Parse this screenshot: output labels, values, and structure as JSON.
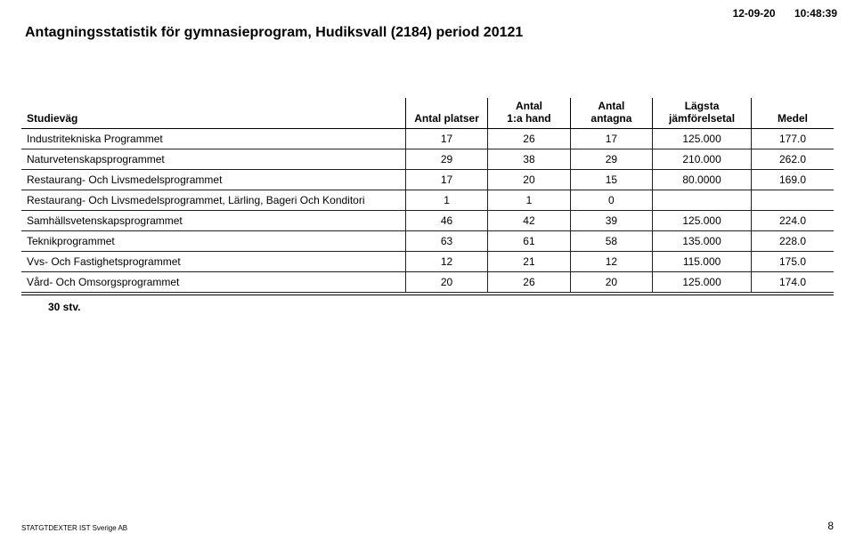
{
  "header": {
    "date": "12-09-20",
    "time": "10:48:39",
    "title": "Antagningsstatistik för gymnasieprogram,  Hudiksvall (2184) period 20121"
  },
  "table": {
    "columns": {
      "c1": "Studieväg",
      "c2": "Antal platser",
      "c3_line1": "Antal",
      "c3_line2": "1:a hand",
      "c4_line1": "Antal",
      "c4_line2": "antagna",
      "c5_line1": "Lägsta",
      "c5_line2": "jämförelsetal",
      "c6": "Medel"
    },
    "rows": [
      {
        "name": "Industritekniska Programmet",
        "platser": "17",
        "hand": "26",
        "antagna": "17",
        "lagsta": "125.000",
        "medel": "177.0"
      },
      {
        "name": "Naturvetenskapsprogrammet",
        "platser": "29",
        "hand": "38",
        "antagna": "29",
        "lagsta": "210.000",
        "medel": "262.0"
      },
      {
        "name": "Restaurang- Och Livsmedelsprogrammet",
        "platser": "17",
        "hand": "20",
        "antagna": "15",
        "lagsta": "80.0000",
        "medel": "169.0"
      },
      {
        "name": "Restaurang- Och Livsmedelsprogrammet, Lärling, Bageri Och Konditori",
        "platser": "1",
        "hand": "1",
        "antagna": "0",
        "lagsta": "",
        "medel": ""
      },
      {
        "name": "Samhällsvetenskapsprogrammet",
        "platser": "46",
        "hand": "42",
        "antagna": "39",
        "lagsta": "125.000",
        "medel": "224.0"
      },
      {
        "name": "Teknikprogrammet",
        "platser": "63",
        "hand": "61",
        "antagna": "58",
        "lagsta": "135.000",
        "medel": "228.0"
      },
      {
        "name": "Vvs- Och Fastighetsprogrammet",
        "platser": "12",
        "hand": "21",
        "antagna": "12",
        "lagsta": "115.000",
        "medel": "175.0"
      },
      {
        "name": "Vård- Och Omsorgsprogrammet",
        "platser": "20",
        "hand": "26",
        "antagna": "20",
        "lagsta": "125.000",
        "medel": "174.0"
      }
    ],
    "count_label": "30  stv."
  },
  "footer": {
    "left": "STATGTDEXTER  IST Sverige AB",
    "page": "8"
  },
  "style": {
    "colors": {
      "bg": "#ffffff",
      "text": "#000000",
      "rule": "#000000"
    },
    "font_family": "Arial",
    "title_fontsize": 16,
    "body_fontsize": 12,
    "footer_fontsize": 8
  }
}
